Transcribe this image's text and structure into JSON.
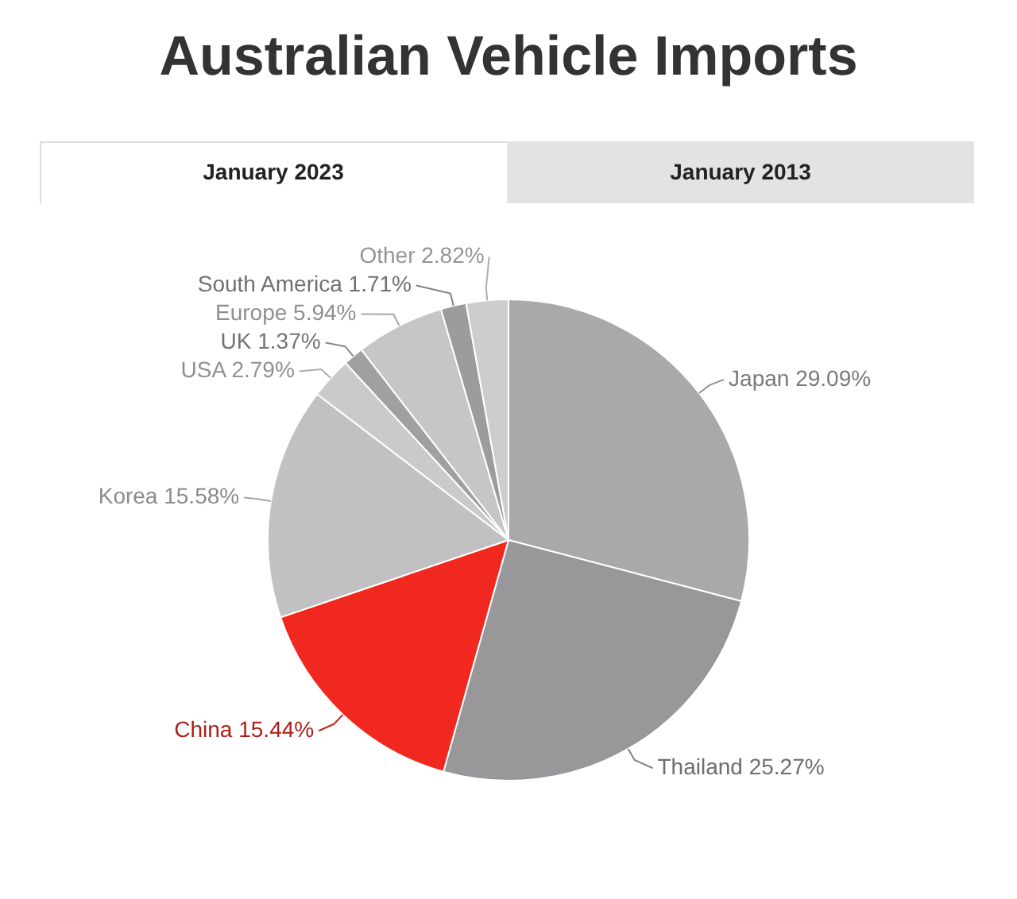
{
  "chart_data": {
    "type": "pie",
    "title": "Australian Vehicle Imports",
    "annotations": [
      "January 2023",
      "January 2013"
    ],
    "categories": [
      "Japan",
      "Thailand",
      "China",
      "Korea",
      "USA",
      "UK",
      "Europe",
      "South America",
      "Other"
    ],
    "values": [
      29.09,
      25.27,
      15.44,
      15.58,
      2.79,
      1.37,
      5.94,
      1.71,
      2.82
    ],
    "value_labels": [
      "29.09%",
      "25.27%",
      "15.44%",
      "15.58%",
      "2.79%",
      "1.37%",
      "5.94%",
      "1.71%",
      "2.82%"
    ],
    "colors": [
      "#a9a9ab",
      "#98989a",
      "#f0281f",
      "#c1c1c3",
      "#cacacc",
      "#a0a0a2",
      "#c6c6c8",
      "#9c9c9e",
      "#cdcdcf"
    ]
  }
}
